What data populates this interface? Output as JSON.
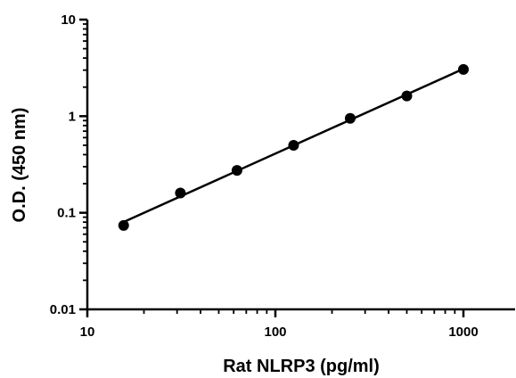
{
  "chart_data": {
    "type": "scatter",
    "title": "",
    "xlabel": "Rat NLRP3 (pg/ml)",
    "ylabel": "O.D. (450 nm)",
    "xscale": "log",
    "yscale": "log",
    "xlim": [
      10,
      2000
    ],
    "ylim": [
      0.01,
      10
    ],
    "xticks": [
      10,
      100,
      1000
    ],
    "xtick_labels": [
      "10",
      "100",
      "1000"
    ],
    "yticks": [
      0.01,
      0.1,
      1,
      10
    ],
    "ytick_labels": [
      "0.01",
      "0.1",
      "1",
      "10"
    ],
    "minor_ticks": true,
    "grid": false,
    "legend": "none",
    "series": [
      {
        "x": [
          15.6,
          31.25,
          62.5,
          125,
          250,
          500,
          1000
        ],
        "y": [
          0.074,
          0.16,
          0.275,
          0.5,
          0.95,
          1.62,
          3.05
        ],
        "marker_color": "#000000",
        "fit_line": "linear-log-log",
        "line_color": "#000000"
      }
    ]
  }
}
